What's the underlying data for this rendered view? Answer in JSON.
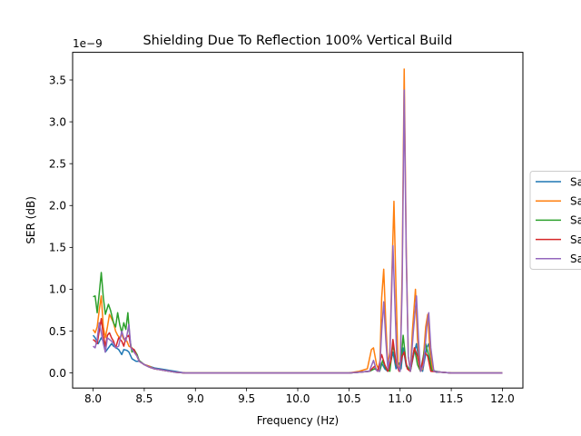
{
  "chart_data": {
    "type": "line",
    "title": "Shielding Due To Reflection 100% Vertical Build",
    "xlabel": "Frequency (Hz)",
    "ylabel": "SER (dB)",
    "y_scale_label": "1e−9",
    "xlim": [
      7.8,
      12.2
    ],
    "ylim": [
      -0.18,
      3.83
    ],
    "x_ticks": [
      8.0,
      8.5,
      9.0,
      9.5,
      10.0,
      10.5,
      11.0,
      11.5,
      12.0
    ],
    "x_tick_labels": [
      "8.0",
      "8.5",
      "9.0",
      "9.5",
      "10.0",
      "10.5",
      "11.0",
      "11.5",
      "12.0"
    ],
    "y_ticks": [
      0.0,
      0.5,
      1.0,
      1.5,
      2.0,
      2.5,
      3.0,
      3.5
    ],
    "y_tick_labels": [
      "0.0",
      "0.5",
      "1.0",
      "1.5",
      "2.0",
      "2.5",
      "3.0",
      "3.5"
    ],
    "grid": false,
    "legend_position": "right, outside plot (clipped)",
    "series": [
      {
        "name": "Sa",
        "color": "#1f77b4",
        "points": [
          [
            8.0,
            0.45
          ],
          [
            8.02,
            0.42
          ],
          [
            8.05,
            0.35
          ],
          [
            8.08,
            0.42
          ],
          [
            8.1,
            0.38
          ],
          [
            8.12,
            0.25
          ],
          [
            8.15,
            0.3
          ],
          [
            8.18,
            0.35
          ],
          [
            8.2,
            0.32
          ],
          [
            8.25,
            0.28
          ],
          [
            8.28,
            0.22
          ],
          [
            8.3,
            0.28
          ],
          [
            8.33,
            0.27
          ],
          [
            8.35,
            0.25
          ],
          [
            8.38,
            0.17
          ],
          [
            8.42,
            0.14
          ],
          [
            8.45,
            0.14
          ],
          [
            8.5,
            0.1
          ],
          [
            8.55,
            0.08
          ],
          [
            8.6,
            0.06
          ],
          [
            8.65,
            0.05
          ],
          [
            8.7,
            0.04
          ],
          [
            8.75,
            0.03
          ],
          [
            8.8,
            0.02
          ],
          [
            8.85,
            0.01
          ],
          [
            8.9,
            0.0
          ],
          [
            9.5,
            0.0
          ],
          [
            10.5,
            0.0
          ],
          [
            10.6,
            0.01
          ],
          [
            10.7,
            0.02
          ],
          [
            10.75,
            0.05
          ],
          [
            10.8,
            0.02
          ],
          [
            10.82,
            0.12
          ],
          [
            10.85,
            0.05
          ],
          [
            10.88,
            0.02
          ],
          [
            10.9,
            0.08
          ],
          [
            10.93,
            0.25
          ],
          [
            10.96,
            0.05
          ],
          [
            10.99,
            0.12
          ],
          [
            11.01,
            0.05
          ],
          [
            11.03,
            0.3
          ],
          [
            11.06,
            0.08
          ],
          [
            11.1,
            0.02
          ],
          [
            11.13,
            0.2
          ],
          [
            11.16,
            0.35
          ],
          [
            11.19,
            0.08
          ],
          [
            11.22,
            0.02
          ],
          [
            11.26,
            0.3
          ],
          [
            11.28,
            0.35
          ],
          [
            11.31,
            0.05
          ],
          [
            11.35,
            0.01
          ],
          [
            11.4,
            0.01
          ],
          [
            11.5,
            0.0
          ],
          [
            12.0,
            0.0
          ]
        ]
      },
      {
        "name": "Sa",
        "color": "#ff7f0e",
        "points": [
          [
            8.0,
            0.52
          ],
          [
            8.02,
            0.48
          ],
          [
            8.04,
            0.55
          ],
          [
            8.06,
            0.75
          ],
          [
            8.08,
            0.92
          ],
          [
            8.1,
            0.55
          ],
          [
            8.12,
            0.42
          ],
          [
            8.14,
            0.55
          ],
          [
            8.16,
            0.7
          ],
          [
            8.18,
            0.65
          ],
          [
            8.2,
            0.6
          ],
          [
            8.22,
            0.5
          ],
          [
            8.24,
            0.45
          ],
          [
            8.26,
            0.42
          ],
          [
            8.28,
            0.46
          ],
          [
            8.3,
            0.4
          ],
          [
            8.33,
            0.38
          ],
          [
            8.35,
            0.32
          ],
          [
            8.38,
            0.3
          ],
          [
            8.4,
            0.25
          ],
          [
            8.43,
            0.2
          ],
          [
            8.45,
            0.14
          ],
          [
            8.5,
            0.1
          ],
          [
            8.55,
            0.08
          ],
          [
            8.6,
            0.05
          ],
          [
            8.65,
            0.04
          ],
          [
            8.7,
            0.03
          ],
          [
            8.75,
            0.02
          ],
          [
            8.8,
            0.01
          ],
          [
            8.9,
            0.0
          ],
          [
            9.5,
            0.0
          ],
          [
            10.5,
            0.0
          ],
          [
            10.6,
            0.02
          ],
          [
            10.68,
            0.05
          ],
          [
            10.72,
            0.28
          ],
          [
            10.74,
            0.3
          ],
          [
            10.77,
            0.1
          ],
          [
            10.8,
            0.02
          ],
          [
            10.82,
            0.9
          ],
          [
            10.84,
            1.24
          ],
          [
            10.86,
            0.6
          ],
          [
            10.88,
            0.1
          ],
          [
            10.9,
            0.25
          ],
          [
            10.92,
            1.2
          ],
          [
            10.94,
            2.05
          ],
          [
            10.96,
            1.0
          ],
          [
            10.98,
            0.1
          ],
          [
            11.0,
            0.02
          ],
          [
            11.02,
            1.2
          ],
          [
            11.04,
            3.63
          ],
          [
            11.06,
            1.5
          ],
          [
            11.08,
            0.2
          ],
          [
            11.1,
            0.02
          ],
          [
            11.12,
            0.5
          ],
          [
            11.15,
            1.0
          ],
          [
            11.17,
            0.4
          ],
          [
            11.2,
            0.02
          ],
          [
            11.22,
            0.05
          ],
          [
            11.25,
            0.55
          ],
          [
            11.27,
            0.7
          ],
          [
            11.29,
            0.3
          ],
          [
            11.32,
            0.02
          ],
          [
            11.4,
            0.01
          ],
          [
            11.5,
            0.0
          ],
          [
            12.0,
            0.0
          ]
        ]
      },
      {
        "name": "Sa",
        "color": "#2ca02c",
        "points": [
          [
            8.0,
            0.91
          ],
          [
            8.02,
            0.92
          ],
          [
            8.04,
            0.72
          ],
          [
            8.06,
            0.95
          ],
          [
            8.08,
            1.2
          ],
          [
            8.1,
            0.9
          ],
          [
            8.12,
            0.7
          ],
          [
            8.15,
            0.82
          ],
          [
            8.17,
            0.75
          ],
          [
            8.2,
            0.6
          ],
          [
            8.22,
            0.55
          ],
          [
            8.24,
            0.72
          ],
          [
            8.26,
            0.58
          ],
          [
            8.28,
            0.48
          ],
          [
            8.3,
            0.6
          ],
          [
            8.32,
            0.52
          ],
          [
            8.34,
            0.72
          ],
          [
            8.36,
            0.4
          ],
          [
            8.38,
            0.25
          ],
          [
            8.4,
            0.28
          ],
          [
            8.43,
            0.22
          ],
          [
            8.45,
            0.15
          ],
          [
            8.5,
            0.1
          ],
          [
            8.55,
            0.07
          ],
          [
            8.6,
            0.05
          ],
          [
            8.65,
            0.04
          ],
          [
            8.7,
            0.03
          ],
          [
            8.75,
            0.02
          ],
          [
            8.8,
            0.01
          ],
          [
            8.9,
            0.0
          ],
          [
            9.5,
            0.0
          ],
          [
            10.5,
            0.0
          ],
          [
            10.6,
            0.01
          ],
          [
            10.7,
            0.02
          ],
          [
            10.75,
            0.05
          ],
          [
            10.8,
            0.02
          ],
          [
            10.83,
            0.15
          ],
          [
            10.86,
            0.05
          ],
          [
            10.9,
            0.02
          ],
          [
            10.93,
            0.35
          ],
          [
            10.96,
            0.1
          ],
          [
            11.0,
            0.02
          ],
          [
            11.03,
            0.45
          ],
          [
            11.06,
            0.1
          ],
          [
            11.1,
            0.02
          ],
          [
            11.14,
            0.3
          ],
          [
            11.17,
            0.1
          ],
          [
            11.2,
            0.02
          ],
          [
            11.25,
            0.35
          ],
          [
            11.28,
            0.2
          ],
          [
            11.31,
            0.03
          ],
          [
            11.4,
            0.01
          ],
          [
            11.5,
            0.0
          ],
          [
            12.0,
            0.0
          ]
        ]
      },
      {
        "name": "Sa",
        "color": "#d62728",
        "points": [
          [
            8.0,
            0.4
          ],
          [
            8.02,
            0.38
          ],
          [
            8.04,
            0.35
          ],
          [
            8.06,
            0.5
          ],
          [
            8.08,
            0.65
          ],
          [
            8.1,
            0.45
          ],
          [
            8.12,
            0.32
          ],
          [
            8.14,
            0.45
          ],
          [
            8.16,
            0.48
          ],
          [
            8.18,
            0.42
          ],
          [
            8.2,
            0.38
          ],
          [
            8.22,
            0.3
          ],
          [
            8.25,
            0.42
          ],
          [
            8.28,
            0.38
          ],
          [
            8.3,
            0.32
          ],
          [
            8.32,
            0.42
          ],
          [
            8.35,
            0.45
          ],
          [
            8.37,
            0.3
          ],
          [
            8.4,
            0.28
          ],
          [
            8.43,
            0.2
          ],
          [
            8.45,
            0.14
          ],
          [
            8.5,
            0.1
          ],
          [
            8.55,
            0.07
          ],
          [
            8.6,
            0.05
          ],
          [
            8.65,
            0.04
          ],
          [
            8.7,
            0.03
          ],
          [
            8.75,
            0.02
          ],
          [
            8.8,
            0.01
          ],
          [
            8.9,
            0.0
          ],
          [
            9.5,
            0.0
          ],
          [
            10.5,
            0.0
          ],
          [
            10.6,
            0.01
          ],
          [
            10.7,
            0.02
          ],
          [
            10.75,
            0.08
          ],
          [
            10.78,
            0.02
          ],
          [
            10.82,
            0.22
          ],
          [
            10.85,
            0.1
          ],
          [
            10.88,
            0.02
          ],
          [
            10.91,
            0.15
          ],
          [
            10.93,
            0.4
          ],
          [
            10.96,
            0.12
          ],
          [
            10.99,
            0.02
          ],
          [
            11.02,
            0.2
          ],
          [
            11.04,
            0.25
          ],
          [
            11.07,
            0.05
          ],
          [
            11.1,
            0.02
          ],
          [
            11.14,
            0.3
          ],
          [
            11.17,
            0.2
          ],
          [
            11.2,
            0.02
          ],
          [
            11.24,
            0.25
          ],
          [
            11.27,
            0.2
          ],
          [
            11.3,
            0.02
          ],
          [
            11.4,
            0.01
          ],
          [
            11.5,
            0.0
          ],
          [
            12.0,
            0.0
          ]
        ]
      },
      {
        "name": "Sa",
        "color": "#9467bd",
        "points": [
          [
            8.0,
            0.32
          ],
          [
            8.02,
            0.3
          ],
          [
            8.04,
            0.4
          ],
          [
            8.06,
            0.6
          ],
          [
            8.08,
            0.48
          ],
          [
            8.1,
            0.35
          ],
          [
            8.12,
            0.25
          ],
          [
            8.14,
            0.42
          ],
          [
            8.16,
            0.4
          ],
          [
            8.18,
            0.38
          ],
          [
            8.2,
            0.35
          ],
          [
            8.22,
            0.3
          ],
          [
            8.25,
            0.32
          ],
          [
            8.28,
            0.5
          ],
          [
            8.3,
            0.42
          ],
          [
            8.32,
            0.38
          ],
          [
            8.35,
            0.58
          ],
          [
            8.37,
            0.3
          ],
          [
            8.4,
            0.25
          ],
          [
            8.43,
            0.2
          ],
          [
            8.45,
            0.14
          ],
          [
            8.5,
            0.1
          ],
          [
            8.55,
            0.07
          ],
          [
            8.6,
            0.05
          ],
          [
            8.65,
            0.04
          ],
          [
            8.7,
            0.03
          ],
          [
            8.75,
            0.02
          ],
          [
            8.8,
            0.01
          ],
          [
            8.9,
            0.0
          ],
          [
            9.5,
            0.0
          ],
          [
            10.5,
            0.0
          ],
          [
            10.6,
            0.01
          ],
          [
            10.7,
            0.02
          ],
          [
            10.74,
            0.15
          ],
          [
            10.77,
            0.03
          ],
          [
            10.8,
            0.02
          ],
          [
            10.82,
            0.5
          ],
          [
            10.84,
            0.85
          ],
          [
            10.86,
            0.4
          ],
          [
            10.88,
            0.05
          ],
          [
            10.9,
            0.2
          ],
          [
            10.93,
            1.52
          ],
          [
            10.95,
            0.8
          ],
          [
            10.97,
            0.1
          ],
          [
            11.0,
            0.02
          ],
          [
            11.02,
            1.0
          ],
          [
            11.04,
            3.38
          ],
          [
            11.06,
            1.4
          ],
          [
            11.08,
            0.2
          ],
          [
            11.1,
            0.02
          ],
          [
            11.13,
            0.5
          ],
          [
            11.16,
            0.92
          ],
          [
            11.18,
            0.4
          ],
          [
            11.2,
            0.02
          ],
          [
            11.23,
            0.1
          ],
          [
            11.26,
            0.55
          ],
          [
            11.28,
            0.72
          ],
          [
            11.3,
            0.3
          ],
          [
            11.33,
            0.02
          ],
          [
            11.4,
            0.01
          ],
          [
            11.5,
            0.0
          ],
          [
            12.0,
            0.0
          ]
        ]
      }
    ]
  }
}
